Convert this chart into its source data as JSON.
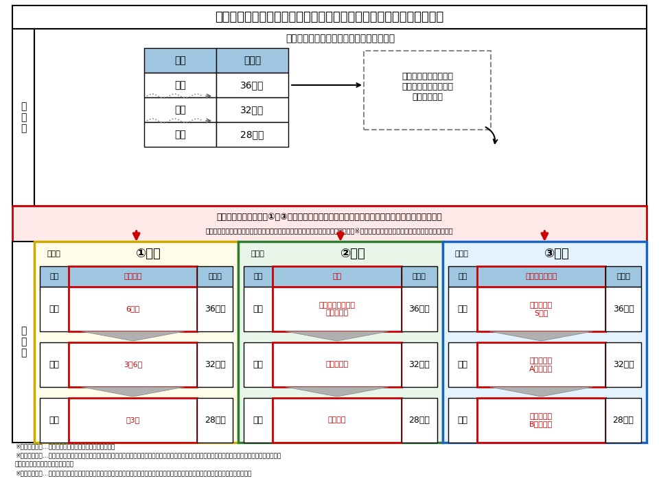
{
  "title": "処遇改善加算（拡充後）におけるキャリアアップの仕組みのイメージ",
  "bg_color": "#ffffff",
  "old_label": "旧\n加\n算",
  "new_label": "新\n加\n算",
  "old_table_header": "職位・職責・職務内容等に応じた賃金体系",
  "old_col1": "職位",
  "old_col2": "月給例",
  "old_rows": [
    [
      "主任",
      "36万円"
    ],
    [
      "班長",
      "32万円"
    ],
    [
      "一般",
      "28万円"
    ]
  ],
  "dashed_note": "どのような場合に昇給\nするのかが必ずしも明\nらかでない。",
  "req_text1": "事業者において以下の①〜③のいずれかに応じた昇給の仕組みを設けることを新たに要件とする",
  "req_text2": "（就業規則等の明確な根拠規定の書面での整備・全ての介護職員への周知を含む）※昇給の方式は、基本給、手当、賞与等を問わない。",
  "sections": [
    {
      "label": "①経験",
      "example": "（例）",
      "col1": "職位",
      "col2": "勤続年数",
      "col3": "月給例",
      "rows": [
        [
          "主任",
          "6年〜",
          "36万円"
        ],
        [
          "班長",
          "3〜6年",
          "32万円"
        ],
        [
          "一般",
          "〜3年",
          "28万円"
        ]
      ],
      "outer_bg": "#fffde7",
      "outer_border": "#ccaa00",
      "label_circle": "#ffffff"
    },
    {
      "label": "②資格",
      "example": "（例）",
      "col1": "職位",
      "col2": "資格",
      "col3": "月給例",
      "rows": [
        [
          "主任",
          "事業者が指定する\n資格を取得",
          "36万円"
        ],
        [
          "班長",
          "介護福祉士",
          "32万円"
        ],
        [
          "一般",
          "資格なし",
          "28万円"
        ]
      ],
      "outer_bg": "#e8f5e9",
      "outer_border": "#2e7d32",
      "label_circle": "#ffffff"
    },
    {
      "label": "③評価",
      "example": "（例）",
      "col1": "職位",
      "col2": "実技試験の結果",
      "col3": "月給例",
      "rows": [
        [
          "主任",
          "班長試験で\nS評価",
          "36万円"
        ],
        [
          "班長",
          "一般試験で\nA評価以上",
          "32万円"
        ],
        [
          "一般",
          "一般試験で\nB評価以下",
          "28万円"
        ]
      ],
      "outer_bg": "#e3f2fd",
      "outer_border": "#1565c0",
      "label_circle": "#ffffff"
    }
  ],
  "footnotes": [
    "※１　「経験」…「勤続年数」「経験年数」などを想定。",
    "※２　「資格」…「介護福祉士」「実務者研修修了者」などを想定。ただし、介護福祉士資格を有して当該事業所や法人で就業する者についても昇給が図られ",
    "　　る仕組みであることを要する。",
    "※３　「評価」…「実技試験」「人事評価」などを想定。ただし、客観的な評価（採点）基準や昇給条件が明文化されていることを要する。"
  ]
}
